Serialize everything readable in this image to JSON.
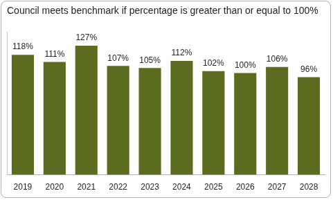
{
  "chart_data": {
    "type": "bar",
    "title": "Council meets benchmark if percentage is greater than or equal to 100%",
    "categories": [
      "2019",
      "2020",
      "2021",
      "2022",
      "2023",
      "2024",
      "2025",
      "2026",
      "2027",
      "2028"
    ],
    "values": [
      118,
      111,
      127,
      107,
      105,
      112,
      102,
      100,
      106,
      96
    ],
    "value_labels": [
      "118%",
      "111%",
      "127%",
      "107%",
      "105%",
      "112%",
      "102%",
      "100%",
      "106%",
      "96%"
    ],
    "data_labels": true,
    "color": "#5b6b1f",
    "ylim": [
      0,
      140
    ],
    "grid": false,
    "tick_labels": "x"
  }
}
